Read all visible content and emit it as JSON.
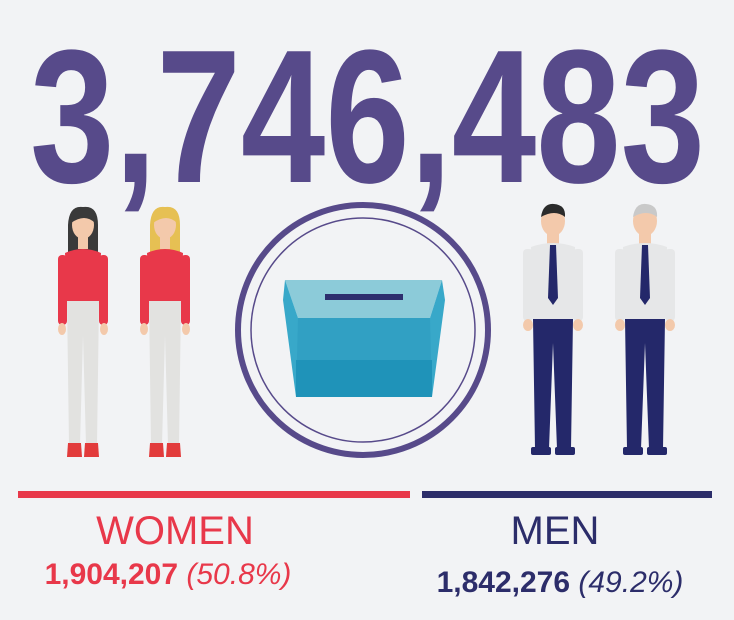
{
  "total": "3,746,483",
  "groups": [
    {
      "label": "WOMEN",
      "count": "1,904,207",
      "share": "(50.8%)"
    },
    {
      "label": "MEN",
      "count": "1,842,276",
      "share": "(49.2%)"
    }
  ]
}
